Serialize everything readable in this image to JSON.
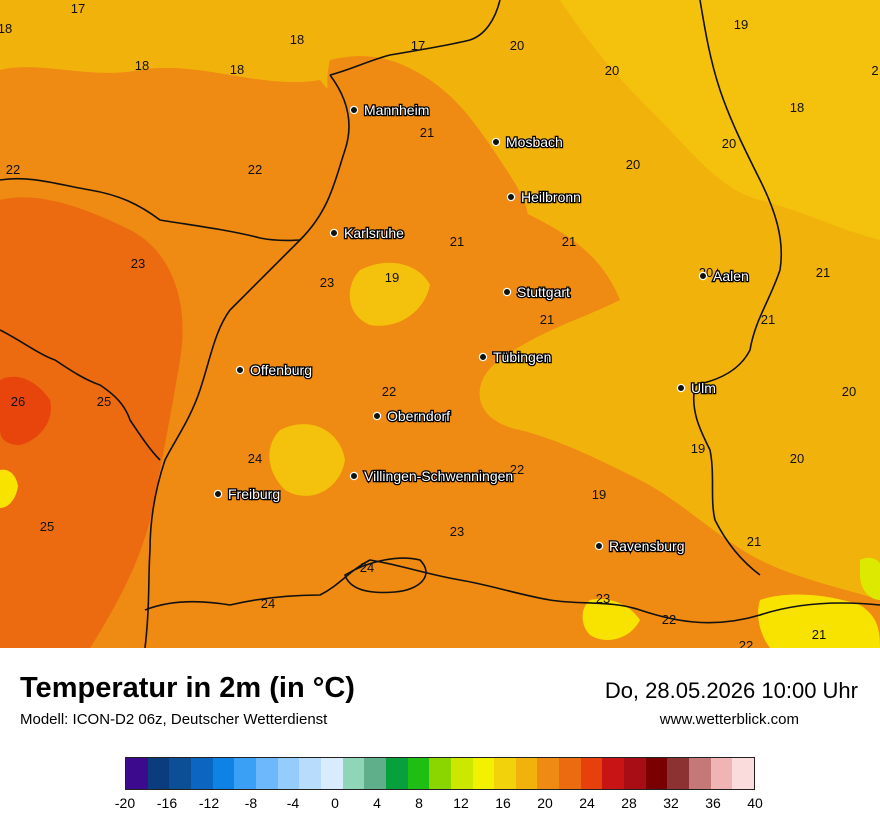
{
  "title": "Temperatur in 2m (in °C)",
  "subtitle": "Modell: ICON-D2 06z, Deutscher Wetterdienst",
  "datetime": "Do, 28.05.2026 10:00 Uhr",
  "website": "www.wetterblick.com",
  "colors": {
    "base": "#f2b20c",
    "warm": "#ef8a12",
    "hot": "#ec6a10",
    "hotter": "#e8450c",
    "cool": "#f4c10c",
    "yellow": "#f7e200",
    "lime": "#ddea00"
  },
  "cities": [
    {
      "name": "Mannheim"
    },
    {
      "name": "Mosbach"
    },
    {
      "name": "Heilbronn"
    },
    {
      "name": "Karlsruhe"
    },
    {
      "name": "Aalen"
    },
    {
      "name": "Stuttgart"
    },
    {
      "name": "Tübingen"
    },
    {
      "name": "Offenburg"
    },
    {
      "name": "Ulm"
    },
    {
      "name": "Oberndorf"
    },
    {
      "name": "Villingen-Schwenningen"
    },
    {
      "name": "Freiburg"
    },
    {
      "name": "Ravensburg"
    }
  ],
  "temperatures": [
    "17",
    "18",
    "18",
    "18",
    "17",
    "18",
    "20",
    "20",
    "19",
    "18",
    "2",
    "21",
    "20",
    "20",
    "22",
    "22",
    "21",
    "21",
    "23",
    "23",
    "19",
    "21",
    "20",
    "21",
    "21",
    "20",
    "26",
    "25",
    "22",
    "19",
    "24",
    "22",
    "19",
    "20",
    "25",
    "23",
    "21",
    "24",
    "24",
    "23",
    "22",
    "22",
    "21"
  ],
  "legend": {
    "colors": [
      "#3c0a8c",
      "#0a3c7e",
      "#0d4f96",
      "#0a66c0",
      "#0f82e6",
      "#3aa0f5",
      "#6cb8fa",
      "#94ccfb",
      "#b8dcfc",
      "#d8ecfd",
      "#8fd6b8",
      "#5fb08a",
      "#08a03c",
      "#1ebe14",
      "#8cd600",
      "#cde800",
      "#f2f200",
      "#f2d20a",
      "#f2b20c",
      "#ef8a12",
      "#ec6a10",
      "#e8400c",
      "#c81414",
      "#a80c14",
      "#780000",
      "#8c3232",
      "#c47878",
      "#f0b4b4",
      "#fadcdc"
    ],
    "ticks": [
      "-20",
      "-16",
      "-12",
      "-8",
      "-4",
      "0",
      "4",
      "8",
      "12",
      "16",
      "20",
      "24",
      "28",
      "32",
      "36",
      "40"
    ]
  }
}
